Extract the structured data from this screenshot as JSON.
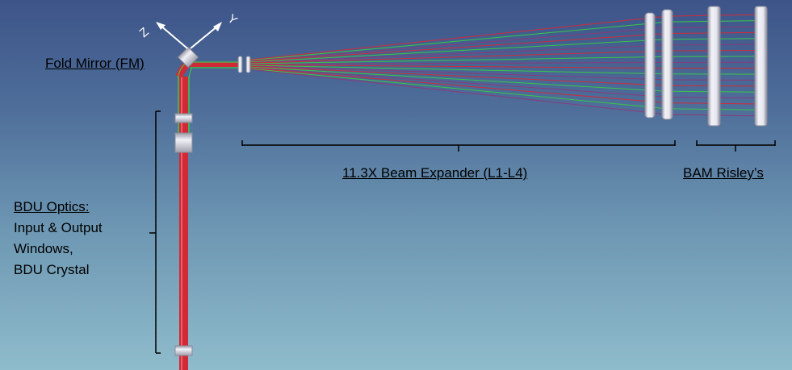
{
  "labels": {
    "fold_mirror": "Fold Mirror (FM)",
    "beam_expander": "11.3X Beam Expander (L1-L4)",
    "bam_risleys": "BAM Risley’s",
    "bdu_title": "BDU Optics:",
    "bdu_line2": "Input & Output",
    "bdu_line3": "Windows,",
    "bdu_line4": "BDU Crystal"
  },
  "axes": {
    "z": "Z",
    "y": "Y"
  },
  "colors": {
    "background_top": "#3d5489",
    "background_bottom": "#8fbccc",
    "ray_red": "#d22a3a",
    "ray_green": "#39c847",
    "ray_purple": "#8a3a7a",
    "bracket": "#000000",
    "axis_arrows": "#ffffff",
    "optic_glass": "#d9d9e6"
  }
}
